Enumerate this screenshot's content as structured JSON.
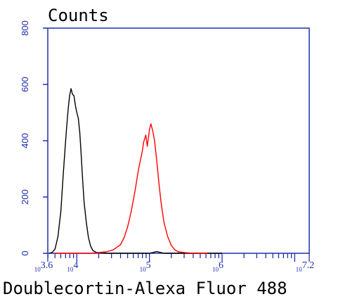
{
  "chart_data": {
    "type": "line",
    "title": "Counts",
    "xlabel": "Doublecortin-Alexa Fluor 488",
    "ylabel": "",
    "x_scale": "log",
    "xlim": [
      3.6,
      7.2
    ],
    "ylim": [
      0,
      800
    ],
    "yticks": [
      0,
      200,
      400,
      600,
      800
    ],
    "xtick_labels": [
      {
        "base": "10",
        "exp": "3.6",
        "value": 3.6
      },
      {
        "base": "10",
        "exp": "4",
        "value": 4
      },
      {
        "base": "10",
        "exp": "5",
        "value": 5
      },
      {
        "base": "10",
        "exp": "6",
        "value": 6
      },
      {
        "base": "10",
        "exp": "7.2",
        "value": 7.2
      }
    ],
    "grid": false,
    "axis_color": "#1f2fb0",
    "series": [
      {
        "color": "#000000",
        "x": [
          3.62,
          3.66,
          3.7,
          3.74,
          3.78,
          3.81,
          3.84,
          3.86,
          3.88,
          3.9,
          3.92,
          3.94,
          3.96,
          3.98,
          4.0,
          4.02,
          4.04,
          4.06,
          4.08,
          4.1,
          4.13,
          4.16,
          4.19,
          4.22,
          4.26,
          4.3,
          4.4,
          4.6,
          5.0,
          5.1,
          5.2,
          6.0
        ],
        "y": [
          0,
          3,
          15,
          60,
          150,
          270,
          380,
          450,
          510,
          560,
          585,
          565,
          560,
          525,
          500,
          480,
          430,
          350,
          260,
          180,
          110,
          55,
          25,
          10,
          4,
          2,
          0,
          0,
          0,
          6,
          0,
          0
        ]
      },
      {
        "color": "#ff0000",
        "x": [
          3.7,
          4.2,
          4.4,
          4.5,
          4.6,
          4.65,
          4.7,
          4.75,
          4.8,
          4.85,
          4.9,
          4.92,
          4.95,
          4.97,
          5.0,
          5.02,
          5.05,
          5.07,
          5.1,
          5.13,
          5.16,
          5.2,
          5.25,
          5.3,
          5.35,
          5.4,
          5.5,
          5.6,
          5.8
        ],
        "y": [
          0,
          0,
          5,
          12,
          30,
          55,
          95,
          150,
          220,
          300,
          360,
          395,
          420,
          380,
          440,
          460,
          430,
          400,
          330,
          250,
          180,
          110,
          60,
          28,
          12,
          5,
          2,
          0,
          0
        ]
      }
    ]
  }
}
